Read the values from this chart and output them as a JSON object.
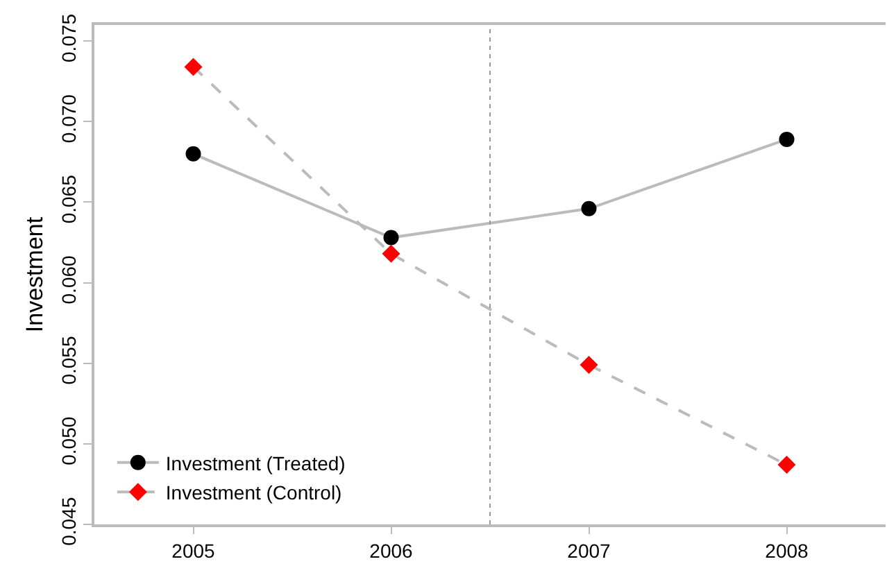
{
  "chart_data": {
    "type": "line",
    "ylabel": "Investment",
    "x": [
      2005,
      2006,
      2007,
      2008
    ],
    "series": [
      {
        "name": "Investment (Treated)",
        "color": "#000000",
        "values": [
          0.068,
          0.0628,
          0.0646,
          0.0689
        ],
        "marker": "circle",
        "line_style": "solid"
      },
      {
        "name": "Investment (Control)",
        "color": "#ff0000",
        "values": [
          0.0734,
          0.0618,
          0.0549,
          0.0487
        ],
        "marker": "diamond",
        "line_style": "dashed"
      }
    ],
    "xlim": [
      2004.5,
      2008.5
    ],
    "xticks": [
      2005,
      2006,
      2007,
      2008
    ],
    "ylim": [
      0.045,
      0.076
    ],
    "yticks": [
      0.045,
      {
        "value": 0.05,
        "label": "0.050"
      },
      0.055,
      {
        "value": 0.06,
        "label": "0.060"
      },
      0.065,
      {
        "value": 0.07,
        "label": "0.070"
      },
      0.075
    ],
    "ref_lines": [
      {
        "axis": "x",
        "value": 2006.5,
        "line_style": "dotted",
        "color": "#999999"
      }
    ],
    "grid": false,
    "legend": "bottom left"
  }
}
